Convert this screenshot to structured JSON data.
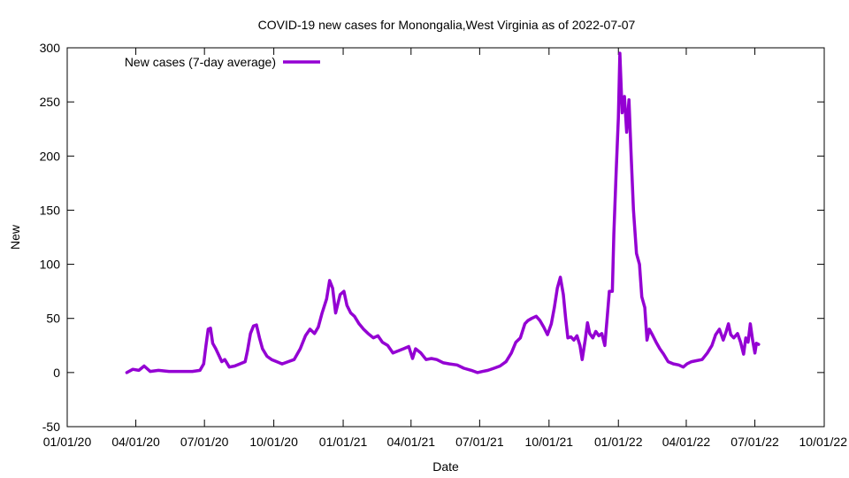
{
  "chart_data": {
    "type": "line",
    "title": "COVID-19 new cases for Monongalia,West Virginia as of 2022-07-07",
    "xlabel": "Date",
    "ylabel": "New",
    "xlim": [
      "2020-01-01",
      "2022-10-01"
    ],
    "ylim": [
      -50,
      300
    ],
    "y_ticks": [
      -50,
      0,
      50,
      100,
      150,
      200,
      250,
      300
    ],
    "x_ticks": [
      {
        "date": "2020-01-01",
        "label": "01/01/20"
      },
      {
        "date": "2020-04-01",
        "label": "04/01/20"
      },
      {
        "date": "2020-07-01",
        "label": "07/01/20"
      },
      {
        "date": "2020-10-01",
        "label": "10/01/20"
      },
      {
        "date": "2021-01-01",
        "label": "01/01/21"
      },
      {
        "date": "2021-04-01",
        "label": "04/01/21"
      },
      {
        "date": "2021-07-01",
        "label": "07/01/21"
      },
      {
        "date": "2021-10-01",
        "label": "10/01/21"
      },
      {
        "date": "2022-01-01",
        "label": "01/01/22"
      },
      {
        "date": "2022-04-01",
        "label": "04/01/22"
      },
      {
        "date": "2022-07-01",
        "label": "07/01/22"
      },
      {
        "date": "2022-10-01",
        "label": "10/01/22"
      }
    ],
    "grid": false,
    "legend": "top-left",
    "series": [
      {
        "name": "New cases (7-day average)",
        "color": "#9400d3",
        "points": [
          [
            "2020-03-20",
            0
          ],
          [
            "2020-03-28",
            3
          ],
          [
            "2020-04-05",
            2
          ],
          [
            "2020-04-12",
            6
          ],
          [
            "2020-04-20",
            1
          ],
          [
            "2020-05-01",
            2
          ],
          [
            "2020-05-15",
            1
          ],
          [
            "2020-06-01",
            1
          ],
          [
            "2020-06-15",
            1
          ],
          [
            "2020-06-25",
            2
          ],
          [
            "2020-06-30",
            8
          ],
          [
            "2020-07-03",
            25
          ],
          [
            "2020-07-06",
            40
          ],
          [
            "2020-07-09",
            41
          ],
          [
            "2020-07-12",
            27
          ],
          [
            "2020-07-16",
            22
          ],
          [
            "2020-07-20",
            16
          ],
          [
            "2020-07-24",
            10
          ],
          [
            "2020-07-28",
            12
          ],
          [
            "2020-08-03",
            5
          ],
          [
            "2020-08-10",
            6
          ],
          [
            "2020-08-17",
            8
          ],
          [
            "2020-08-24",
            10
          ],
          [
            "2020-08-27",
            20
          ],
          [
            "2020-08-31",
            36
          ],
          [
            "2020-09-04",
            43
          ],
          [
            "2020-09-08",
            44
          ],
          [
            "2020-09-12",
            32
          ],
          [
            "2020-09-16",
            22
          ],
          [
            "2020-09-22",
            15
          ],
          [
            "2020-09-28",
            12
          ],
          [
            "2020-10-05",
            10
          ],
          [
            "2020-10-12",
            8
          ],
          [
            "2020-10-20",
            10
          ],
          [
            "2020-10-28",
            12
          ],
          [
            "2020-11-05",
            22
          ],
          [
            "2020-11-12",
            34
          ],
          [
            "2020-11-18",
            40
          ],
          [
            "2020-11-24",
            36
          ],
          [
            "2020-11-29",
            42
          ],
          [
            "2020-12-04",
            55
          ],
          [
            "2020-12-10",
            68
          ],
          [
            "2020-12-14",
            85
          ],
          [
            "2020-12-18",
            78
          ],
          [
            "2020-12-22",
            55
          ],
          [
            "2020-12-28",
            72
          ],
          [
            "2021-01-02",
            75
          ],
          [
            "2021-01-06",
            62
          ],
          [
            "2021-01-11",
            55
          ],
          [
            "2021-01-16",
            52
          ],
          [
            "2021-01-22",
            45
          ],
          [
            "2021-01-28",
            40
          ],
          [
            "2021-02-03",
            36
          ],
          [
            "2021-02-10",
            32
          ],
          [
            "2021-02-16",
            34
          ],
          [
            "2021-02-22",
            28
          ],
          [
            "2021-03-01",
            25
          ],
          [
            "2021-03-08",
            18
          ],
          [
            "2021-03-15",
            20
          ],
          [
            "2021-03-22",
            22
          ],
          [
            "2021-03-29",
            24
          ],
          [
            "2021-04-03",
            13
          ],
          [
            "2021-04-07",
            22
          ],
          [
            "2021-04-14",
            18
          ],
          [
            "2021-04-21",
            12
          ],
          [
            "2021-04-28",
            13
          ],
          [
            "2021-05-05",
            12
          ],
          [
            "2021-05-14",
            9
          ],
          [
            "2021-05-22",
            8
          ],
          [
            "2021-06-01",
            7
          ],
          [
            "2021-06-10",
            4
          ],
          [
            "2021-06-20",
            2
          ],
          [
            "2021-06-28",
            0
          ],
          [
            "2021-07-05",
            1
          ],
          [
            "2021-07-12",
            2
          ],
          [
            "2021-07-20",
            4
          ],
          [
            "2021-07-28",
            6
          ],
          [
            "2021-08-05",
            10
          ],
          [
            "2021-08-12",
            18
          ],
          [
            "2021-08-18",
            28
          ],
          [
            "2021-08-24",
            32
          ],
          [
            "2021-08-30",
            45
          ],
          [
            "2021-09-03",
            48
          ],
          [
            "2021-09-08",
            50
          ],
          [
            "2021-09-14",
            52
          ],
          [
            "2021-09-19",
            48
          ],
          [
            "2021-09-24",
            42
          ],
          [
            "2021-09-29",
            35
          ],
          [
            "2021-10-04",
            45
          ],
          [
            "2021-10-08",
            60
          ],
          [
            "2021-10-12",
            78
          ],
          [
            "2021-10-16",
            88
          ],
          [
            "2021-10-20",
            72
          ],
          [
            "2021-10-23",
            50
          ],
          [
            "2021-10-26",
            32
          ],
          [
            "2021-10-30",
            33
          ],
          [
            "2021-11-03",
            30
          ],
          [
            "2021-11-07",
            34
          ],
          [
            "2021-11-11",
            25
          ],
          [
            "2021-11-14",
            12
          ],
          [
            "2021-11-18",
            30
          ],
          [
            "2021-11-21",
            46
          ],
          [
            "2021-11-24",
            36
          ],
          [
            "2021-11-28",
            32
          ],
          [
            "2021-12-02",
            38
          ],
          [
            "2021-12-06",
            34
          ],
          [
            "2021-12-10",
            36
          ],
          [
            "2021-12-14",
            25
          ],
          [
            "2021-12-17",
            50
          ],
          [
            "2021-12-20",
            75
          ],
          [
            "2021-12-24",
            75
          ],
          [
            "2021-12-26",
            128
          ],
          [
            "2021-12-29",
            185
          ],
          [
            "2022-01-01",
            235
          ],
          [
            "2022-01-03",
            295
          ],
          [
            "2022-01-06",
            240
          ],
          [
            "2022-01-09",
            255
          ],
          [
            "2022-01-12",
            222
          ],
          [
            "2022-01-15",
            252
          ],
          [
            "2022-01-18",
            200
          ],
          [
            "2022-01-21",
            150
          ],
          [
            "2022-01-25",
            110
          ],
          [
            "2022-01-29",
            100
          ],
          [
            "2022-02-01",
            70
          ],
          [
            "2022-02-05",
            60
          ],
          [
            "2022-02-08",
            30
          ],
          [
            "2022-02-11",
            40
          ],
          [
            "2022-02-15",
            35
          ],
          [
            "2022-02-20",
            28
          ],
          [
            "2022-02-25",
            22
          ],
          [
            "2022-03-02",
            17
          ],
          [
            "2022-03-08",
            10
          ],
          [
            "2022-03-15",
            8
          ],
          [
            "2022-03-22",
            7
          ],
          [
            "2022-03-28",
            5
          ],
          [
            "2022-04-02",
            8
          ],
          [
            "2022-04-08",
            10
          ],
          [
            "2022-04-15",
            11
          ],
          [
            "2022-04-22",
            12
          ],
          [
            "2022-04-29",
            18
          ],
          [
            "2022-05-05",
            25
          ],
          [
            "2022-05-10",
            35
          ],
          [
            "2022-05-15",
            40
          ],
          [
            "2022-05-20",
            30
          ],
          [
            "2022-05-24",
            38
          ],
          [
            "2022-05-27",
            45
          ],
          [
            "2022-05-30",
            35
          ],
          [
            "2022-06-03",
            32
          ],
          [
            "2022-06-08",
            36
          ],
          [
            "2022-06-12",
            28
          ],
          [
            "2022-06-16",
            17
          ],
          [
            "2022-06-19",
            32
          ],
          [
            "2022-06-22",
            28
          ],
          [
            "2022-06-25",
            45
          ],
          [
            "2022-06-28",
            30
          ],
          [
            "2022-07-01",
            18
          ],
          [
            "2022-07-03",
            27
          ],
          [
            "2022-07-06",
            26
          ]
        ]
      }
    ]
  }
}
